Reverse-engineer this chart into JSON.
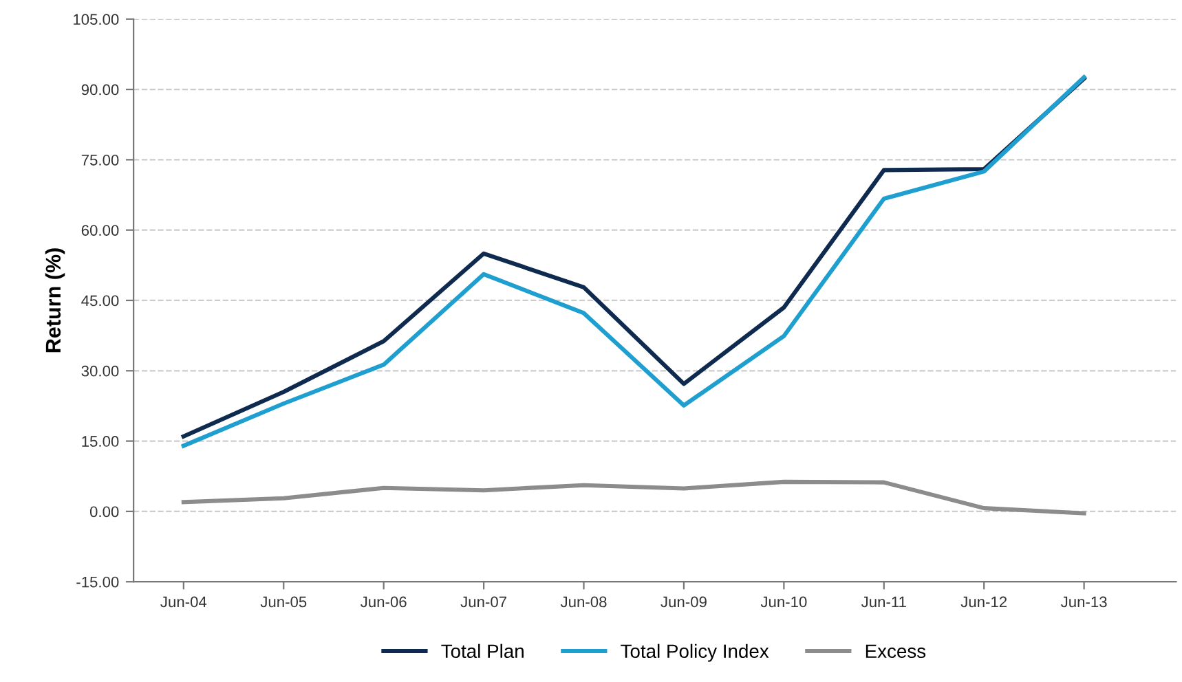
{
  "chart_data": {
    "type": "line",
    "ylabel": "Return (%)",
    "categories": [
      "Jun-04",
      "Jun-05",
      "Jun-06",
      "Jun-07",
      "Jun-08",
      "Jun-09",
      "Jun-10",
      "Jun-11",
      "Jun-12",
      "Jun-13"
    ],
    "series": [
      {
        "name": "Total Plan",
        "color": "#0f2a4f",
        "values": [
          16.0,
          25.5,
          36.3,
          55.0,
          47.8,
          27.2,
          43.5,
          72.8,
          73.0,
          92.3
        ]
      },
      {
        "name": "Total Policy Index",
        "color": "#1f9fd0",
        "values": [
          14.0,
          23.0,
          31.3,
          50.6,
          42.3,
          22.6,
          37.4,
          66.7,
          72.5,
          92.6
        ]
      },
      {
        "name": "Excess",
        "color": "#8c8c8c",
        "values": [
          2.0,
          2.8,
          5.0,
          4.5,
          5.6,
          4.9,
          6.3,
          6.2,
          0.7,
          -0.4
        ]
      }
    ],
    "ylim": [
      -15,
      105
    ],
    "yticks": [
      {
        "value": -15,
        "label": "-15.00"
      },
      {
        "value": 0,
        "label": "0.00"
      },
      {
        "value": 15,
        "label": "15.00"
      },
      {
        "value": 30,
        "label": "30.00"
      },
      {
        "value": 45,
        "label": "45.00"
      },
      {
        "value": 60,
        "label": "60.00"
      },
      {
        "value": 75,
        "label": "75.00"
      },
      {
        "value": 90,
        "label": "90.00"
      },
      {
        "value": 105,
        "label": "105.00"
      }
    ],
    "grid": "y",
    "legend": "bottom",
    "marker": "none",
    "line_style": "solid"
  }
}
